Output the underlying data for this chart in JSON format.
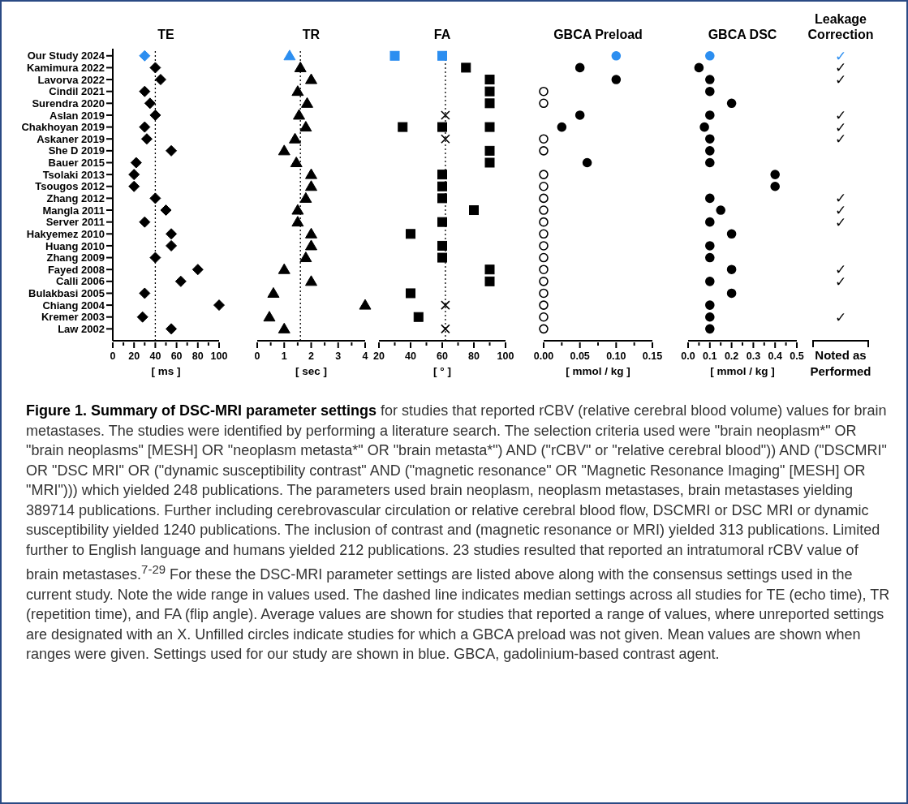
{
  "chart_data": [
    {
      "type": "scatter",
      "title": "TE",
      "xlabel": "[ ms ]",
      "orientation": "horizontal",
      "marker": "diamond",
      "categories": [
        "Our Study 2024",
        "Kamimura 2022",
        "Lavorva 2022",
        "Cindil 2021",
        "Surendra 2020",
        "Aslan 2019",
        "Chakhoyan 2019",
        "Askaner 2019",
        "She D 2019",
        "Bauer 2015",
        "Tsolaki 2013",
        "Tsougos 2012",
        "Zhang 2012",
        "Mangla 2011",
        "Server 2011",
        "Hakyemez 2010",
        "Huang 2010",
        "Zhang 2009",
        "Fayed 2008",
        "Calli 2006",
        "Bulakbasi 2005",
        "Chiang 2004",
        "Kremer 2003",
        "Law 2002"
      ],
      "xlim": [
        0,
        100
      ],
      "xticks": [
        0,
        {
          "value": 10,
          "label": null
        },
        20,
        {
          "value": 30,
          "label": null
        },
        40,
        {
          "value": 50,
          "label": null
        },
        60,
        {
          "value": 70,
          "label": null
        },
        80,
        {
          "value": 90,
          "label": null
        },
        100
      ],
      "series": [
        {
          "values": [
            30,
            40,
            45,
            30,
            35,
            40,
            30,
            32,
            55,
            22,
            20,
            20,
            40,
            50,
            30,
            55,
            55,
            40,
            80,
            64,
            30,
            100,
            28,
            55
          ],
          "colors": [
            "#2c8ef0",
            "#000000",
            "#000000",
            "#000000",
            "#000000",
            "#000000",
            "#000000",
            "#000000",
            "#000000",
            "#000000",
            "#000000",
            "#000000",
            "#000000",
            "#000000",
            "#000000",
            "#000000",
            "#000000",
            "#000000",
            "#000000",
            "#000000",
            "#000000",
            "#000000",
            "#000000",
            "#000000"
          ]
        }
      ],
      "ref_lines": [
        {
          "axis": "x",
          "value": 40,
          "line_style": "dotted",
          "color": "#000000"
        }
      ],
      "annotations": [
        "Figure 1. Summary of DSC-MRI parameter settings",
        " for studies that reported rCBV (relative cerebral blood volume) values for brain metastases. The studies were identified by performing a literature search. The selection criteria used were \"brain neoplasm*\" OR \"brain neoplasms\" [MESH] OR \"neoplasm metasta*\" OR \"brain metasta*\") AND (\"rCBV\" or \"relative cerebral blood\")) AND (\"DSCMRI\" OR \"DSC MRI\" OR (\"dynamic susceptibility contrast\" AND (\"magnetic resonance\" OR \"Magnetic Resonance Imaging\" [MESH] OR \"MRI\"))) which yielded 248 publications. The parameters used brain neoplasm, neoplasm metastases, brain metastases yielding 389714 publications. Further including cerebrovascular circulation or relative cerebral blood flow, DSCMRI or DSC MRI or dynamic susceptibility yielded 1240 publications. The inclusion of contrast and (magnetic resonance or MRI) yielded 313 publications. Limited further to English language and humans yielded 212 publications. 23 studies resulted that reported an intratumoral rCBV value of brain metastases.$^{7-29}$ For these the DSC-MRI parameter settings are listed above along with the consensus settings used in the current study.  Note the wide range in values used. The dashed line indicates median settings across all studies for TE (echo time), TR (repetition time), and FA (flip angle). Average values are shown for studies that reported a range of values, where unreported settings are designated with an X. Unfilled circles indicate studies for which a GBCA preload was not given. Mean values are shown when ranges were given. Settings used for our study are shown in blue. GBCA, gadolinium-based contrast agent."
      ]
    },
    {
      "type": "scatter",
      "title": "TR",
      "xlabel": "[ sec ]",
      "orientation": "horizontal",
      "marker": "triangle",
      "tick_labels": "x",
      "categories": [
        null,
        null,
        null,
        null,
        null,
        null,
        null,
        null,
        null,
        null,
        null,
        null,
        null,
        null,
        null,
        null,
        null,
        null,
        null,
        null,
        null,
        null,
        null,
        null
      ],
      "xlim": [
        0,
        4
      ],
      "xticks": [
        0,
        {
          "value": 0.5,
          "label": null
        },
        1,
        {
          "value": 1.5,
          "label": null
        },
        2,
        {
          "value": 2.5,
          "label": null
        },
        3,
        {
          "value": 3.5,
          "label": null
        },
        4
      ],
      "series": [
        {
          "values": [
            1.2,
            1.6,
            2,
            1.5,
            1.85,
            1.55,
            1.8,
            1.4,
            1,
            1.45,
            2,
            2,
            1.8,
            1.5,
            1.5,
            2,
            2,
            1.8,
            1,
            2,
            0.6,
            4,
            0.45,
            1
          ],
          "colors": [
            "#2c8ef0",
            "#000000",
            "#000000",
            "#000000",
            "#000000",
            "#000000",
            "#000000",
            "#000000",
            "#000000",
            "#000000",
            "#000000",
            "#000000",
            "#000000",
            "#000000",
            "#000000",
            "#000000",
            "#000000",
            "#000000",
            "#000000",
            "#000000",
            "#000000",
            "#000000",
            "#000000",
            "#000000"
          ]
        }
      ],
      "ref_lines": [
        {
          "axis": "x",
          "value": 1.6,
          "line_style": "dotted",
          "color": "#000000"
        }
      ]
    },
    {
      "type": "scatter",
      "title": "FA",
      "xlabel": "[ ° ]",
      "orientation": "horizontal",
      "marker": "square",
      "tick_labels": "x",
      "categories": [
        null,
        null,
        null,
        null,
        null,
        null,
        null,
        null,
        null,
        null,
        null,
        null,
        null,
        null,
        null,
        null,
        null,
        null,
        null,
        null,
        null,
        null,
        null,
        null
      ],
      "xlim": [
        20,
        100
      ],
      "xticks": [
        20,
        {
          "value": 30,
          "label": null
        },
        40,
        {
          "value": 50,
          "label": null
        },
        60,
        {
          "value": 70,
          "label": null
        },
        80,
        {
          "value": 90,
          "label": null
        },
        100
      ],
      "series": [
        {
          "values": [
            30,
            75,
            90,
            90,
            90,
            null,
            35,
            null,
            90,
            90,
            60,
            60,
            60,
            80,
            60,
            40,
            60,
            60,
            90,
            90,
            40,
            null,
            45,
            null
          ],
          "colors": [
            "#2c8ef0",
            "#000000",
            "#000000",
            "#000000",
            "#000000",
            null,
            "#000000",
            null,
            "#000000",
            "#000000",
            "#000000",
            "#000000",
            "#000000",
            "#000000",
            "#000000",
            "#000000",
            "#000000",
            "#000000",
            "#000000",
            "#000000",
            "#000000",
            null,
            "#000000",
            null
          ]
        },
        {
          "values": [
            60,
            null,
            null,
            null,
            null,
            null,
            60,
            null,
            null,
            null,
            null,
            null,
            null,
            null,
            null,
            null,
            null,
            null,
            null,
            null,
            null,
            null,
            null,
            null
          ],
          "colors": [
            "#2c8ef0",
            null,
            null,
            null,
            null,
            null,
            "#000000",
            null,
            null,
            null,
            null,
            null,
            null,
            null,
            null,
            null,
            null,
            null,
            null,
            null,
            null,
            null,
            null,
            null
          ]
        },
        {
          "values": [
            null,
            null,
            null,
            null,
            null,
            null,
            90,
            null,
            null,
            null,
            null,
            null,
            null,
            null,
            null,
            null,
            null,
            null,
            null,
            null,
            null,
            null,
            null,
            null
          ],
          "color": "#000000"
        },
        {
          "values": [
            null,
            null,
            null,
            null,
            null,
            62,
            null,
            62,
            null,
            null,
            null,
            null,
            null,
            null,
            null,
            null,
            null,
            null,
            null,
            null,
            null,
            62,
            null,
            62
          ],
          "color": "#000000",
          "marker": "cross"
        }
      ],
      "ref_lines": [
        {
          "axis": "x",
          "value": 62,
          "line_style": "dotted",
          "color": "#000000"
        }
      ]
    },
    {
      "type": "scatter",
      "title": "GBCA Preload",
      "xlabel": "[ mmol / kg ]",
      "orientation": "horizontal",
      "marker": "circle",
      "tick_labels": "x",
      "categories": [
        null,
        null,
        null,
        null,
        null,
        null,
        null,
        null,
        null,
        null,
        null,
        null,
        null,
        null,
        null,
        null,
        null,
        null,
        null,
        null,
        null,
        null,
        null,
        null
      ],
      "xlim": [
        0,
        0.15
      ],
      "xticks": [
        {
          "value": 0,
          "label": "0.00"
        },
        {
          "value": 0.025,
          "label": null
        },
        {
          "value": 0.05,
          "label": "0.05"
        },
        {
          "value": 0.075,
          "label": null
        },
        {
          "value": 0.1,
          "label": "0.10"
        },
        {
          "value": 0.125,
          "label": null
        },
        {
          "value": 0.15,
          "label": "0.15"
        }
      ],
      "series": [
        {
          "values": [
            0.1,
            0.05,
            0.1,
            null,
            null,
            0.05,
            0.025,
            null,
            null,
            0.06,
            null,
            null,
            null,
            null,
            null,
            null,
            null,
            null,
            null,
            null,
            null,
            null,
            null,
            null
          ],
          "colors": [
            "#2c8ef0",
            "#000000",
            "#000000",
            null,
            null,
            "#000000",
            "#000000",
            null,
            null,
            "#000000",
            null,
            null,
            null,
            null,
            null,
            null,
            null,
            null,
            null,
            null,
            null,
            null,
            null,
            null
          ]
        },
        {
          "values": [
            null,
            null,
            null,
            0,
            0,
            null,
            null,
            0,
            0,
            null,
            0,
            0,
            0,
            0,
            0,
            0,
            0,
            0,
            0,
            0,
            0,
            0,
            0,
            0
          ],
          "color": "#ffffff"
        }
      ]
    },
    {
      "type": "scatter",
      "title": "GBCA DSC",
      "xlabel": "[ mmol / kg ]",
      "orientation": "horizontal",
      "marker": "circle",
      "tick_labels": "x",
      "categories": [
        null,
        null,
        null,
        null,
        null,
        null,
        null,
        null,
        null,
        null,
        null,
        null,
        null,
        null,
        null,
        null,
        null,
        null,
        null,
        null,
        null,
        null,
        null,
        null
      ],
      "xlim": [
        0,
        0.5
      ],
      "xticks": [
        {
          "value": 0,
          "label": "0.0"
        },
        {
          "value": 0.05,
          "label": null
        },
        0.1,
        {
          "value": 0.15,
          "label": null
        },
        0.2,
        {
          "value": 0.25,
          "label": null
        },
        0.3,
        {
          "value": 0.35,
          "label": null
        },
        0.4,
        {
          "value": 0.45,
          "label": null
        },
        0.5
      ],
      "series": [
        {
          "values": [
            0.1,
            0.05,
            0.1,
            0.1,
            0.2,
            0.1,
            0.075,
            0.1,
            0.1,
            0.1,
            0.4,
            0.4,
            0.1,
            0.15,
            0.1,
            0.2,
            0.1,
            0.1,
            0.2,
            0.1,
            0.2,
            0.1,
            0.1,
            0.1
          ],
          "colors": [
            "#2c8ef0",
            "#000000",
            "#000000",
            "#000000",
            "#000000",
            "#000000",
            "#000000",
            "#000000",
            "#000000",
            "#000000",
            "#000000",
            "#000000",
            "#000000",
            "#000000",
            "#000000",
            "#000000",
            "#000000",
            "#000000",
            "#000000",
            "#000000",
            "#000000",
            "#000000",
            "#000000",
            "#000000"
          ]
        }
      ]
    },
    {
      "type": "other",
      "title": "Leakage Correction",
      "xlabel": "Noted as Performed",
      "value_labels": [
        "✓",
        "✓",
        "✓",
        null,
        null,
        "✓",
        "✓",
        "✓",
        null,
        null,
        null,
        null,
        "✓",
        "✓",
        "✓",
        null,
        null,
        null,
        "✓",
        "✓",
        null,
        null,
        "✓",
        null
      ],
      "colors": [
        "#2c8ef0",
        "#000000",
        "#000000",
        null,
        null,
        "#000000",
        "#000000",
        "#000000",
        null,
        null,
        null,
        null,
        "#000000",
        "#000000",
        "#000000",
        null,
        null,
        null,
        "#000000",
        "#000000",
        null,
        null,
        "#000000",
        null
      ]
    }
  ]
}
